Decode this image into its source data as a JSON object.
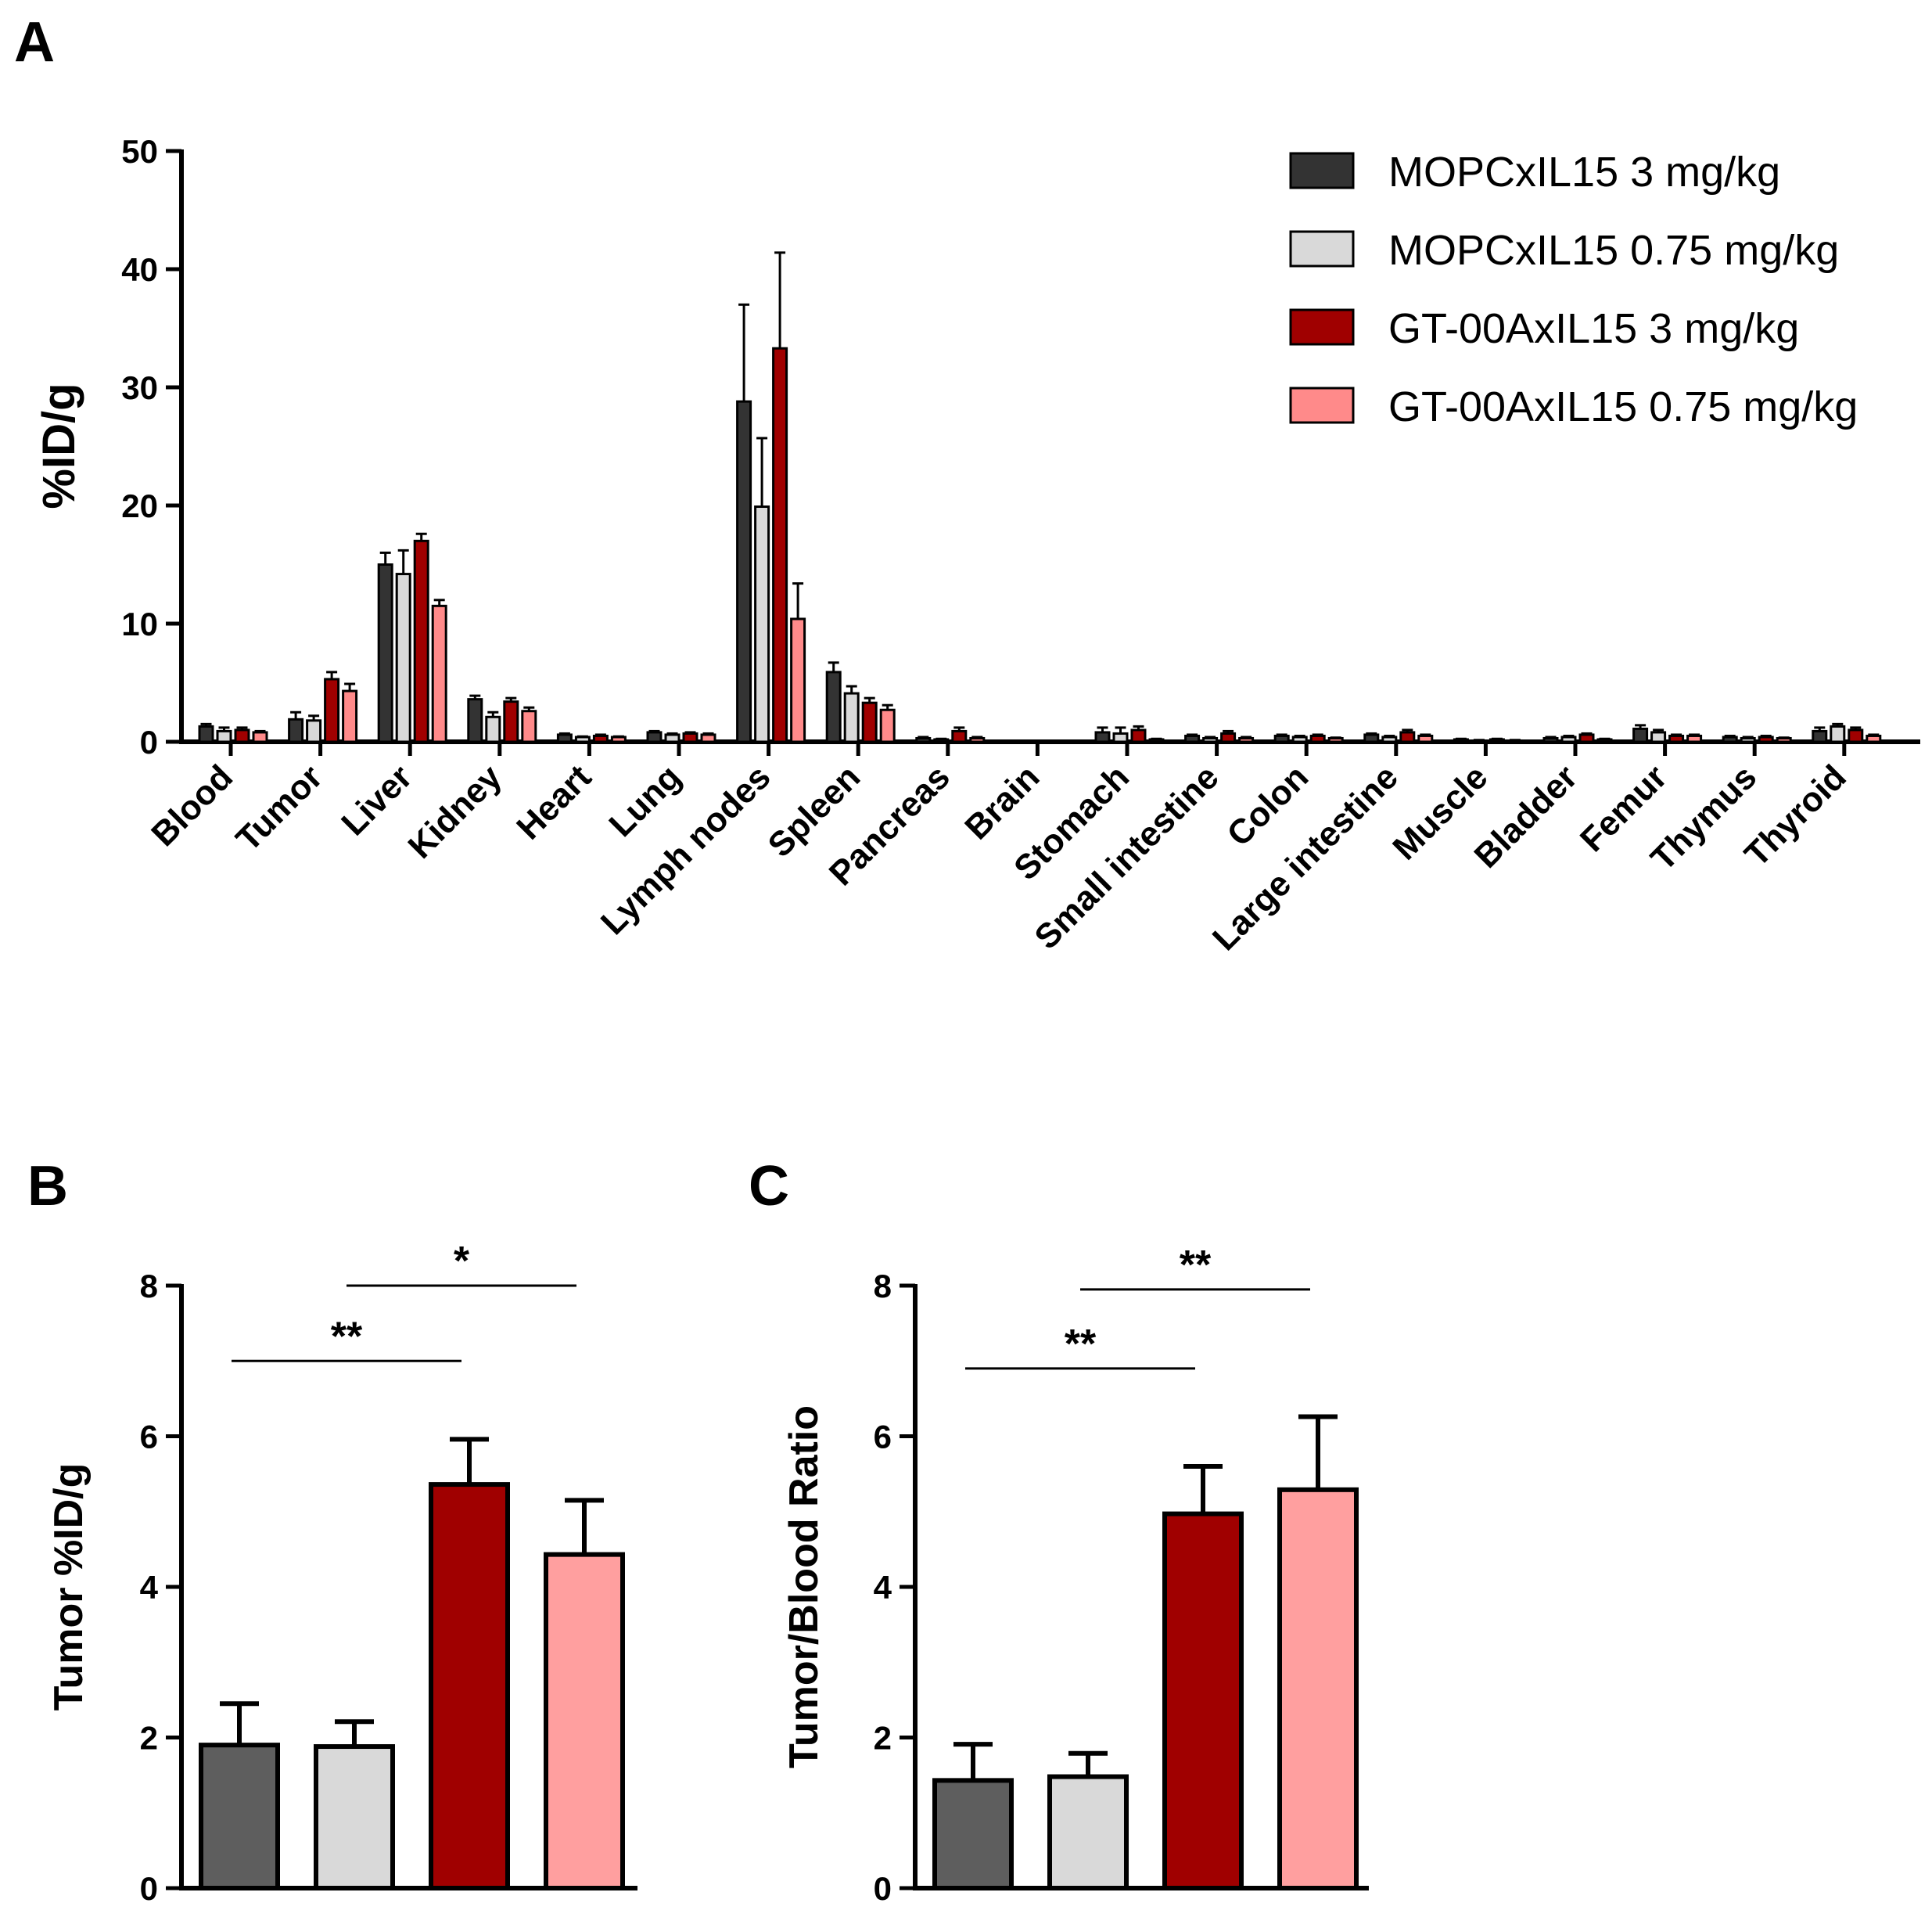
{
  "colors": {
    "MOPCxIL15_3": "#333333",
    "MOPCxIL15_075": "#d9d9d9",
    "GT_3": "#a00000",
    "GT_075": "#ff8a8a",
    "MOPCxIL15_3_panelBC": "#5e5e5e",
    "GT_075_panelBC": "#ff9f9f"
  },
  "legend": [
    {
      "label": "MOPCxIL15 3 mg/kg",
      "color": "#333333"
    },
    {
      "label": "MOPCxIL15 0.75 mg/kg",
      "color": "#d9d9d9"
    },
    {
      "label": "GT-00AxIL15 3 mg/kg",
      "color": "#a00000"
    },
    {
      "label": "GT-00AxIL15 0.75 mg/kg",
      "color": "#ff8a8a"
    }
  ],
  "chart_data": [
    {
      "panel": "A",
      "type": "bar",
      "ylabel": "%ID/g",
      "xlabel": "",
      "ylim": [
        0,
        50
      ],
      "yticks": [
        0,
        10,
        20,
        30,
        40,
        50
      ],
      "categories": [
        "Blood",
        "Tumor",
        "Liver",
        "Kidney",
        "Heart",
        "Lung",
        "Lymph nodes",
        "Spleen",
        "Pancreas",
        "Brain",
        "Stomach",
        "Small intestine",
        "Colon",
        "Large intestine",
        "Muscle",
        "Bladder",
        "Femur",
        "Thymus",
        "Thyroid"
      ],
      "series": [
        {
          "name": "MOPCxIL15 3 mg/kg",
          "values": [
            1.3,
            1.9,
            15.0,
            3.6,
            0.6,
            0.8,
            28.8,
            5.9,
            0.3,
            0,
            0.8,
            0.5,
            0.5,
            0.6,
            0.2,
            0.3,
            1.1,
            0.4,
            0.9
          ],
          "errors": [
            0.2,
            0.6,
            1.0,
            0.3,
            0.1,
            0.1,
            8.2,
            0.8,
            0.1,
            0,
            0.4,
            0.1,
            0.1,
            0.1,
            0.05,
            0.1,
            0.3,
            0.1,
            0.3
          ]
        },
        {
          "name": "MOPCxIL15 0.75 mg/kg",
          "values": [
            0.9,
            1.8,
            14.2,
            2.1,
            0.4,
            0.6,
            19.9,
            4.1,
            0.2,
            0,
            0.7,
            0.3,
            0.4,
            0.4,
            0.1,
            0.4,
            0.8,
            0.3,
            1.3
          ],
          "errors": [
            0.3,
            0.4,
            2.0,
            0.4,
            0.05,
            0.1,
            5.8,
            0.6,
            0.05,
            0,
            0.5,
            0.1,
            0.1,
            0.1,
            0.05,
            0.1,
            0.2,
            0.1,
            0.2
          ]
        },
        {
          "name": "GT-00AxIL15 3 mg/kg",
          "values": [
            1.0,
            5.3,
            17.0,
            3.4,
            0.5,
            0.7,
            33.3,
            3.3,
            0.9,
            0,
            1.0,
            0.7,
            0.5,
            0.8,
            0.2,
            0.6,
            0.5,
            0.4,
            1.0
          ],
          "errors": [
            0.2,
            0.6,
            0.6,
            0.3,
            0.1,
            0.1,
            8.1,
            0.4,
            0.3,
            0,
            0.3,
            0.2,
            0.1,
            0.2,
            0.05,
            0.1,
            0.1,
            0.1,
            0.2
          ]
        },
        {
          "name": "GT-00AxIL15 0.75 mg/kg",
          "values": [
            0.8,
            4.3,
            11.5,
            2.6,
            0.4,
            0.6,
            10.4,
            2.7,
            0.3,
            0,
            0.2,
            0.3,
            0.3,
            0.5,
            0.1,
            0.2,
            0.5,
            0.3,
            0.5
          ],
          "errors": [
            0.1,
            0.6,
            0.5,
            0.3,
            0.05,
            0.1,
            3.0,
            0.4,
            0.1,
            0,
            0.05,
            0.1,
            0.05,
            0.1,
            0.05,
            0.05,
            0.1,
            0.05,
            0.1
          ]
        }
      ]
    },
    {
      "panel": "B",
      "type": "bar",
      "ylabel": "Tumor %ID/g",
      "xlabel": "",
      "ylim": [
        0,
        8
      ],
      "yticks": [
        0,
        2,
        4,
        6,
        8
      ],
      "values": [
        1.9,
        1.88,
        5.36,
        4.43
      ],
      "errors": [
        0.55,
        0.33,
        0.6,
        0.72
      ],
      "significance": [
        {
          "from": 0,
          "to": 2,
          "y": 7.0,
          "label": "**"
        },
        {
          "from": 1,
          "to": 3,
          "y": 8.0,
          "label": "*"
        }
      ]
    },
    {
      "panel": "C",
      "type": "bar",
      "ylabel": "Tumor/Blood Ratio",
      "xlabel": "",
      "ylim": [
        0,
        8
      ],
      "yticks": [
        0,
        2,
        4,
        6,
        8
      ],
      "values": [
        1.43,
        1.48,
        4.97,
        5.29
      ],
      "errors": [
        0.48,
        0.31,
        0.63,
        0.97
      ],
      "significance": [
        {
          "from": 0,
          "to": 2,
          "y": 6.9,
          "label": "**"
        },
        {
          "from": 1,
          "to": 3,
          "y": 7.95,
          "label": "**"
        }
      ]
    }
  ]
}
